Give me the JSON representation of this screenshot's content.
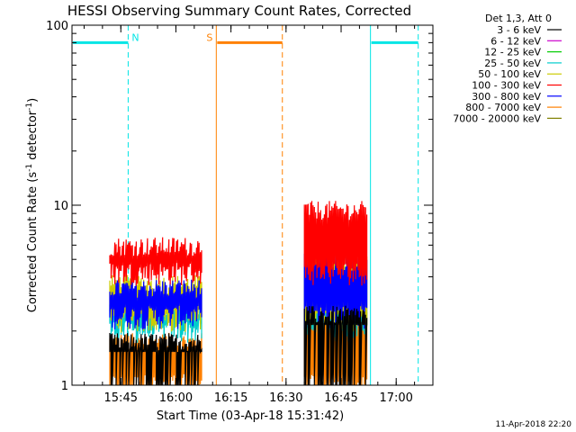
{
  "chart_data": {
    "type": "line",
    "title": "HESSI Observing Summary Count Rates, Corrected",
    "xlabel": "Start Time (03-Apr-18 15:31:42)",
    "ylabel_main": "Corrected Count Rate (s",
    "ylabel_sup1": "-1",
    "ylabel_mid": " detector",
    "ylabel_sup2": "-1",
    "ylabel_end": ")",
    "y_scale": "log",
    "ylim": [
      1,
      100
    ],
    "xlim_minutes": [
      15.5,
      15.75,
      17.0,
      17.2
    ],
    "x_range": [
      "15:31:42",
      "17:10:00"
    ],
    "x_ticks": [
      "15:45",
      "16:00",
      "16:15",
      "16:30",
      "16:45",
      "17:00"
    ],
    "y_ticks": [
      "1",
      "10",
      "100"
    ],
    "legend_title": "Det 1,3, Att 0",
    "legend_position": "top-right",
    "series": [
      {
        "name": "3 - 6 keV",
        "color": "#000000"
      },
      {
        "name": "6 - 12 keV",
        "color": "#cc00cc"
      },
      {
        "name": "12 - 25 keV",
        "color": "#00cc00"
      },
      {
        "name": "25 - 50 keV",
        "color": "#00cccc"
      },
      {
        "name": "50 - 100 keV",
        "color": "#cccc00"
      },
      {
        "name": "100 - 300 keV",
        "color": "#ff0000"
      },
      {
        "name": "300 - 800 keV",
        "color": "#0000ff"
      },
      {
        "name": "800 - 7000 keV",
        "color": "#ff8000"
      },
      {
        "name": "7000 - 20000 keV",
        "color": "#808000"
      }
    ],
    "segments": [
      {
        "start": "15:42",
        "end": "16:07",
        "red_level": 5.8,
        "blue_level": 3.4,
        "orange_level": 1.7
      },
      {
        "start": "16:35",
        "end": "16:52",
        "red_level": 9.2,
        "blue_level": 4.8,
        "orange_level": 2.4
      }
    ],
    "attenuator_bars": [
      {
        "color": "#00e5e5",
        "start": "15:31:42",
        "end": "15:47",
        "level": 80,
        "label": "N"
      },
      {
        "color": "#ff8000",
        "start": "16:11",
        "end": "16:29",
        "level": 80,
        "label": "S"
      },
      {
        "color": "#00e5e5",
        "start": "16:53",
        "end": "17:06",
        "level": 80,
        "label": ""
      }
    ],
    "vertical_markers": [
      {
        "time": "15:31:42",
        "color": "#00e5e5",
        "style": "solid"
      },
      {
        "time": "15:47",
        "color": "#00e5e5",
        "style": "dashed"
      },
      {
        "time": "16:11",
        "color": "#ff8000",
        "style": "solid"
      },
      {
        "time": "16:29",
        "color": "#ff8000",
        "style": "dashed"
      },
      {
        "time": "16:53",
        "color": "#00e5e5",
        "style": "solid"
      },
      {
        "time": "17:06",
        "color": "#00e5e5",
        "style": "dashed"
      }
    ]
  },
  "footer": {
    "date_stamp": "11-Apr-2018 22:20"
  }
}
